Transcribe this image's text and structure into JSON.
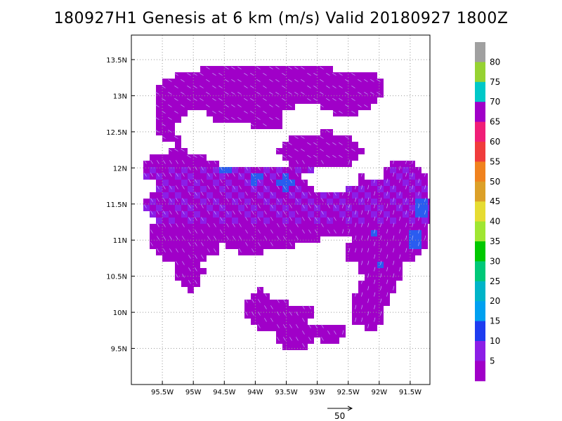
{
  "title": "180927H1 Genesis at 6 km (m/s) Valid 20180927 1800Z",
  "map": {
    "lon_range": [
      -96.0,
      -91.2
    ],
    "lat_range": [
      9.0,
      13.75
    ],
    "grid": "dotted",
    "x_ticks": [
      {
        "value": -95.5,
        "label": "95.5W"
      },
      {
        "value": -95.0,
        "label": "95W"
      },
      {
        "value": -94.5,
        "label": "94.5W"
      },
      {
        "value": -94.0,
        "label": "94W"
      },
      {
        "value": -93.5,
        "label": "93.5W"
      },
      {
        "value": -93.0,
        "label": "93W"
      },
      {
        "value": -92.5,
        "label": "92.5W"
      },
      {
        "value": -92.0,
        "label": "92W"
      },
      {
        "value": -91.5,
        "label": "91.5W"
      }
    ],
    "y_ticks": [
      {
        "value": 9.5,
        "label": "9.5N"
      },
      {
        "value": 10.0,
        "label": "10N"
      },
      {
        "value": 10.5,
        "label": "10.5N"
      },
      {
        "value": 11.0,
        "label": "11N"
      },
      {
        "value": 11.5,
        "label": "11.5N"
      },
      {
        "value": 12.0,
        "label": "12N"
      },
      {
        "value": 12.5,
        "label": "12.5N"
      },
      {
        "value": 13.0,
        "label": "13N"
      },
      {
        "value": 13.5,
        "label": "13.5N"
      }
    ],
    "field_colors": {
      "base": "#a000c8",
      "mid": "#8c1ee6",
      "high": "#2a5cf0"
    }
  },
  "colorbar": {
    "labels": [
      "80",
      "75",
      "70",
      "65",
      "60",
      "55",
      "50",
      "45",
      "40",
      "35",
      "30",
      "25",
      "20",
      "15",
      "10",
      "5"
    ],
    "colors": [
      "#a0a0a0",
      "#96d232",
      "#00c8c8",
      "#a000c8",
      "#f01e78",
      "#f03c3c",
      "#f0821e",
      "#dca028",
      "#e6dc32",
      "#a0e632",
      "#00c800",
      "#00c878",
      "#00b4c8",
      "#00a0f0",
      "#1e3cf0",
      "#8c1ee6",
      "#a000c8"
    ]
  },
  "reference_vector": {
    "label": "50"
  }
}
